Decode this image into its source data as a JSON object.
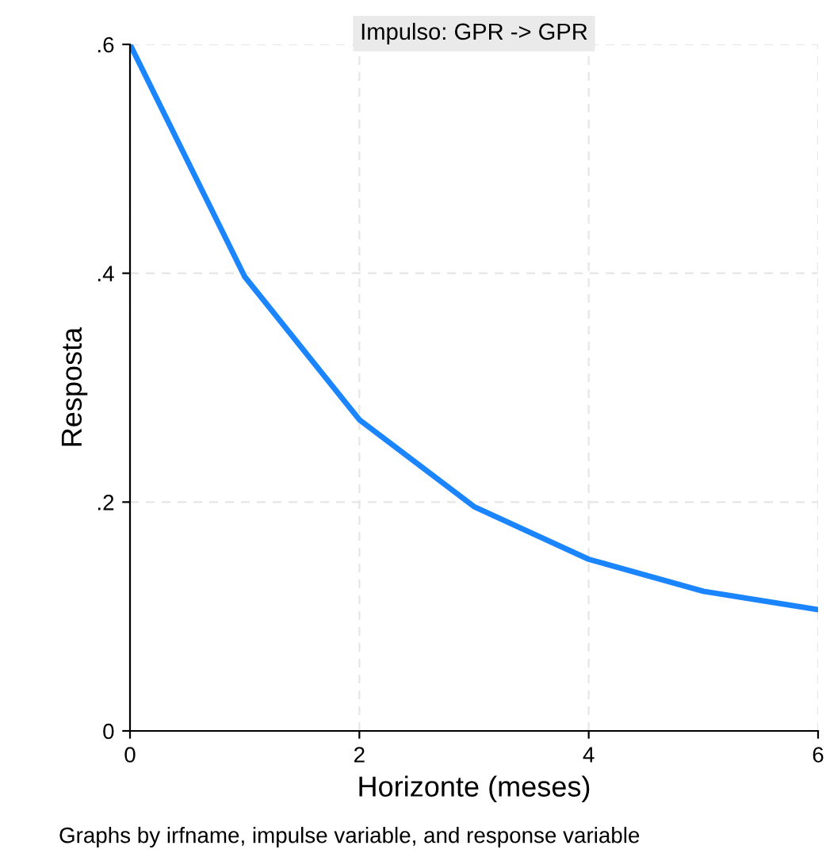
{
  "chart_data": {
    "type": "line",
    "title": "Impulso: GPR -> GPR",
    "xlabel": "Horizonte (meses)",
    "ylabel": "Resposta",
    "x": [
      0,
      1,
      2,
      3,
      4,
      5,
      6
    ],
    "series": [
      {
        "color": "#1a85ff",
        "values": [
          0.6,
          0.397,
          0.272,
          0.196,
          0.15,
          0.122,
          0.106
        ]
      }
    ],
    "xlim": [
      0,
      6
    ],
    "ylim": [
      0,
      0.6
    ],
    "xticks": [
      0,
      2,
      4,
      6
    ],
    "yticks": [
      {
        "value": 0,
        "label": "0"
      },
      {
        "value": 0.2,
        "label": ".2"
      },
      {
        "value": 0.4,
        "label": ".4"
      },
      {
        "value": 0.6,
        "label": ".6"
      }
    ],
    "grid": true,
    "line_style": "solid",
    "marker": "none",
    "annotations": [
      "Graphs by irfname, impulse variable, and response variable"
    ]
  }
}
